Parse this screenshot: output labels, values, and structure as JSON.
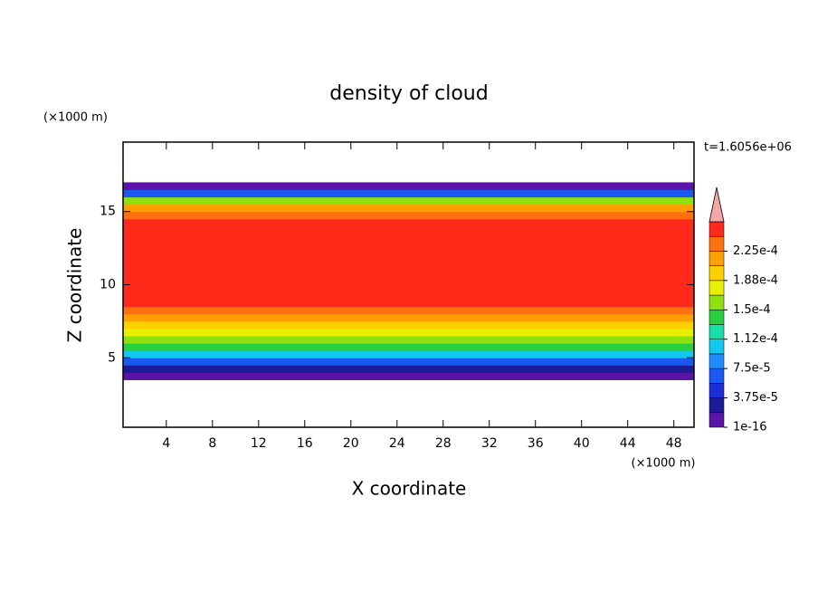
{
  "chart_data": {
    "type": "contour",
    "title": "density of cloud",
    "xlabel": "X coordinate",
    "ylabel": "Z coordinate",
    "x_unit": "(×1000 m)",
    "y_unit": "(×1000 m)",
    "annotation": "t=1.6056e+06",
    "xlim": [
      0.25,
      49.75
    ],
    "ylim": [
      0.25,
      19.75
    ],
    "xticks": [
      4,
      8,
      12,
      16,
      20,
      24,
      28,
      32,
      36,
      40,
      44,
      48
    ],
    "yticks": [
      5,
      10,
      15
    ],
    "ybins": [
      3.5,
      4,
      4.5,
      5,
      5.5,
      6,
      6.5,
      7,
      7.5,
      8,
      8.5,
      9,
      9.5,
      10,
      10.5,
      11,
      11.5,
      12,
      12.5,
      13,
      13.5,
      14,
      14.5,
      15,
      15.5,
      16,
      16.5,
      17
    ],
    "values": [
      1e-06,
      3e-05,
      6e-05,
      0.0001,
      0.00014,
      0.00016,
      0.000175,
      0.000195,
      0.00021,
      0.00023,
      0.00025,
      0.00025,
      0.00025,
      0.00025,
      0.00025,
      0.00025,
      0.00025,
      0.00025,
      0.00025,
      0.00025,
      0.00025,
      0.00025,
      0.00023,
      0.00021,
      0.00015,
      7e-05,
      1e-06
    ],
    "colorbar": {
      "levels": [
        1e-16,
        1.875e-05,
        3.75e-05,
        5.625e-05,
        7.5e-05,
        9.375e-05,
        0.0001125,
        0.00013125,
        0.00015,
        0.00016875,
        0.0001875,
        0.00020625,
        0.000225,
        0.00024375,
        0.0002625
      ],
      "colors": [
        "#5b14a8",
        "#1c1c98",
        "#1e2ed6",
        "#1a58f2",
        "#1e8cff",
        "#10c8f0",
        "#18e0a8",
        "#28d040",
        "#90e010",
        "#e8f000",
        "#ffd000",
        "#ffa000",
        "#ff7010",
        "#ff2a1a"
      ],
      "extend_color": "#f4a6a6",
      "ticks": [
        {
          "value": 1e-16,
          "label": "1e-16"
        },
        {
          "value": 3.75e-05,
          "label": "3.75e-5"
        },
        {
          "value": 7.5e-05,
          "label": "7.5e-5"
        },
        {
          "value": 0.0001125,
          "label": "1.12e-4"
        },
        {
          "value": 0.00015,
          "label": "1.5e-4"
        },
        {
          "value": 0.0001875,
          "label": "1.88e-4"
        },
        {
          "value": 0.000225,
          "label": "2.25e-4"
        }
      ]
    }
  }
}
